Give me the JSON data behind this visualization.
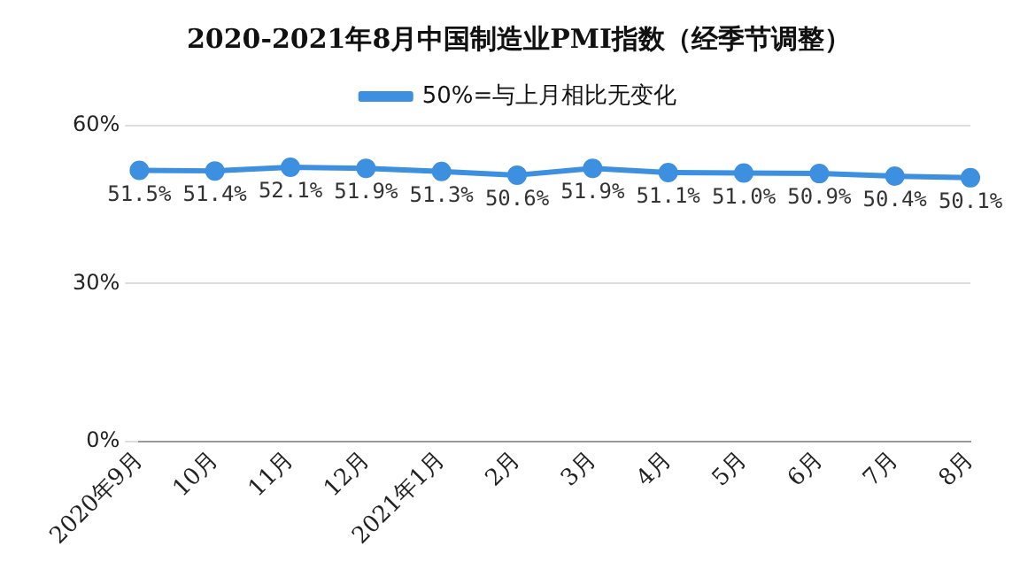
{
  "chart_data": {
    "type": "line",
    "title": "2020-2021年8月中国制造业PMI指数（经季节调整）",
    "categories": [
      "2020年9月",
      "10月",
      "11月",
      "12月",
      "2021年1月",
      "2月",
      "3月",
      "4月",
      "5月",
      "6月",
      "7月",
      "8月"
    ],
    "series": [
      {
        "name": "50%=与上月相比无变化",
        "color": "#3d8fe0",
        "values": [
          51.5,
          51.4,
          52.1,
          51.9,
          51.3,
          50.6,
          51.9,
          51.1,
          51.0,
          50.9,
          50.4,
          50.1
        ],
        "value_labels": [
          "51.5%",
          "51.4%",
          "52.1%",
          "51.9%",
          "51.3%",
          "50.6%",
          "51.9%",
          "51.1%",
          "51.0%",
          "50.9%",
          "50.4%",
          "50.1%"
        ]
      }
    ],
    "ylim": [
      0,
      60
    ],
    "yticks": [
      {
        "value": 0,
        "label": "0%"
      },
      {
        "value": 30,
        "label": "30%"
      },
      {
        "value": 60,
        "label": "60%"
      }
    ],
    "grid": "y",
    "legend": "top",
    "marker": "circle",
    "line_style": "solid"
  }
}
